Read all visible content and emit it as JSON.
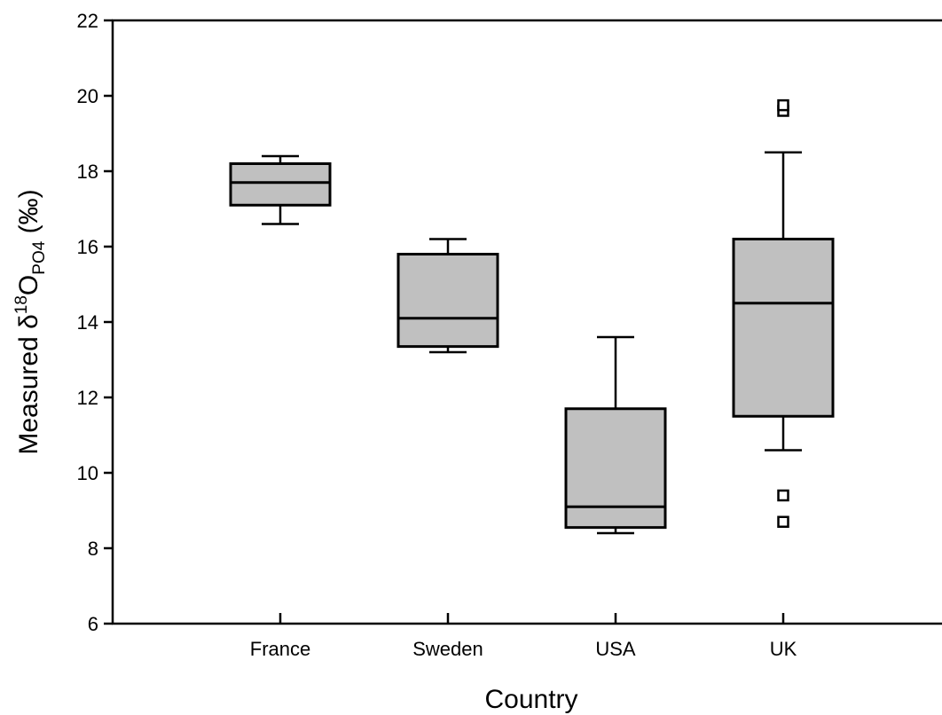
{
  "chart_data": {
    "type": "box",
    "title": "",
    "xlabel": "Country",
    "ylabel": {
      "prefix": "Measured δ",
      "sup": "18",
      "main": "O",
      "sub": "PO4",
      "suffix": " (‰)"
    },
    "ylim": [
      6,
      22
    ],
    "yticks": [
      6,
      8,
      10,
      12,
      14,
      16,
      18,
      20,
      22
    ],
    "grid": false,
    "colors": {
      "box_fill": "#c0c0c0",
      "stroke": "#000000",
      "outlier_fill": "#ffffff"
    },
    "categories": [
      "France",
      "Sweden",
      "USA",
      "UK"
    ],
    "boxes": [
      {
        "category": "France",
        "whisker_low": 16.6,
        "q1": 17.1,
        "median": 17.7,
        "q3": 18.2,
        "whisker_high": 18.4,
        "outliers": []
      },
      {
        "category": "Sweden",
        "whisker_low": 13.2,
        "q1": 13.35,
        "median": 14.1,
        "q3": 15.8,
        "whisker_high": 16.2,
        "outliers": []
      },
      {
        "category": "USA",
        "whisker_low": 8.4,
        "q1": 8.55,
        "median": 9.1,
        "q3": 11.7,
        "whisker_high": 13.6,
        "outliers": []
      },
      {
        "category": "UK",
        "whisker_low": 10.6,
        "q1": 11.5,
        "median": 14.5,
        "q3": 16.2,
        "whisker_high": 18.5,
        "outliers": [
          19.6,
          19.75,
          9.4,
          8.7
        ]
      }
    ]
  }
}
